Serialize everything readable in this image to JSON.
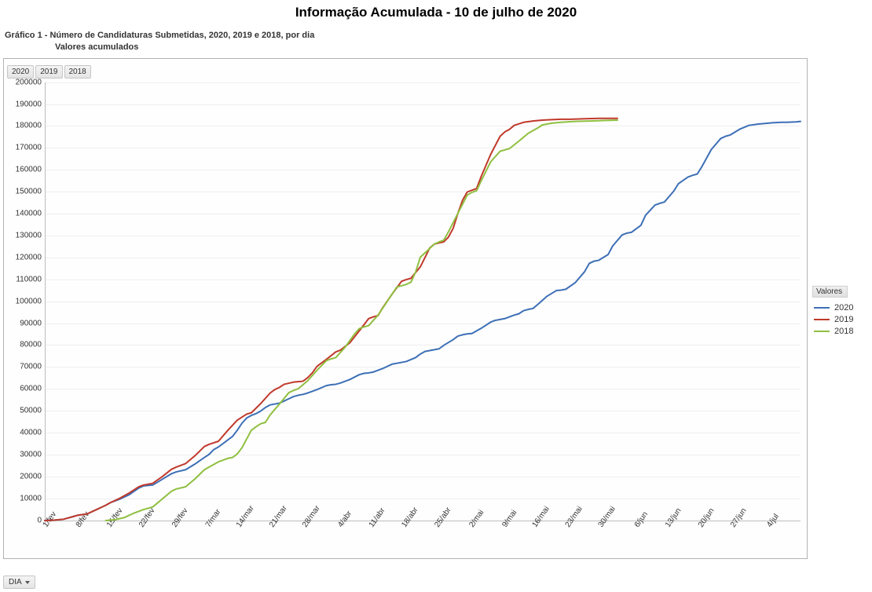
{
  "title": "Informação Acumulada - 10 de julho de 2020",
  "subtitle": {
    "line1": "Gráfico 1 - Número de Candidaturas Submetidas, 2020, 2019 e 2018, por dia",
    "line2": "Valores acumulados"
  },
  "year_chips": [
    "2020",
    "2019",
    "2018"
  ],
  "dia_button_label": "DIA",
  "legend": {
    "title": "Valores",
    "items": [
      {
        "label": "2020",
        "color": "#3d6fb6"
      },
      {
        "label": "2019",
        "color": "#c0392b"
      },
      {
        "label": "2018",
        "color": "#8fbf3f"
      }
    ]
  },
  "chart": {
    "type": "line",
    "background_color": "#fefefe",
    "border_color": "#b3b3b3",
    "grid_color": "#eeeeee",
    "axis_color": "#bdbdbd",
    "label_font_size": 10,
    "line_width": 2,
    "y_axis": {
      "min": 0,
      "max": 200000,
      "tick_step": 10000
    },
    "x_axis": {
      "start_day": 0,
      "end_day": 161,
      "tick_step_days": 7,
      "tick_labels": [
        "1/fev",
        "8/fev",
        "15/fev",
        "22/fev",
        "29/fev",
        "7/mar",
        "14/mar",
        "21/mar",
        "28/mar",
        "4/abr",
        "11/abr",
        "18/abr",
        "25/abr",
        "2/mai",
        "9/mai",
        "16/mai",
        "23/mai",
        "30/mai",
        "6/jun",
        "13/jun",
        "20/jun",
        "27/jun",
        "4/jul"
      ]
    },
    "series": [
      {
        "name": "2020",
        "color": "#3d6fb6",
        "data": [
          [
            0,
            0
          ],
          [
            2,
            200
          ],
          [
            4,
            600
          ],
          [
            6,
            1800
          ],
          [
            7,
            2400
          ],
          [
            9,
            3000
          ],
          [
            11,
            5000
          ],
          [
            13,
            7000
          ],
          [
            14,
            8200
          ],
          [
            16,
            9800
          ],
          [
            18,
            11800
          ],
          [
            20,
            14800
          ],
          [
            21,
            15800
          ],
          [
            23,
            16200
          ],
          [
            25,
            18800
          ],
          [
            27,
            21400
          ],
          [
            28,
            22200
          ],
          [
            30,
            23200
          ],
          [
            32,
            25800
          ],
          [
            34,
            28800
          ],
          [
            35,
            30200
          ],
          [
            36,
            32400
          ],
          [
            37,
            33600
          ],
          [
            38,
            35200
          ],
          [
            39,
            36800
          ],
          [
            40,
            38400
          ],
          [
            41,
            41200
          ],
          [
            42,
            44400
          ],
          [
            43,
            46800
          ],
          [
            44,
            48000
          ],
          [
            45,
            48800
          ],
          [
            46,
            50000
          ],
          [
            47,
            51600
          ],
          [
            48,
            52800
          ],
          [
            49,
            53200
          ],
          [
            50,
            53600
          ],
          [
            51,
            54600
          ],
          [
            52,
            55600
          ],
          [
            53,
            56600
          ],
          [
            54,
            57200
          ],
          [
            55,
            57600
          ],
          [
            56,
            58200
          ],
          [
            58,
            59800
          ],
          [
            60,
            61600
          ],
          [
            61,
            62000
          ],
          [
            62,
            62200
          ],
          [
            63,
            62800
          ],
          [
            65,
            64400
          ],
          [
            67,
            66600
          ],
          [
            68,
            67200
          ],
          [
            69,
            67400
          ],
          [
            70,
            67800
          ],
          [
            72,
            69400
          ],
          [
            74,
            71400
          ],
          [
            75,
            71800
          ],
          [
            76,
            72200
          ],
          [
            77,
            72600
          ],
          [
            79,
            74400
          ],
          [
            80,
            76000
          ],
          [
            81,
            77200
          ],
          [
            82,
            77600
          ],
          [
            83,
            78000
          ],
          [
            84,
            78400
          ],
          [
            85,
            80000
          ],
          [
            87,
            82600
          ],
          [
            88,
            84200
          ],
          [
            89,
            84800
          ],
          [
            90,
            85200
          ],
          [
            91,
            85400
          ],
          [
            93,
            87800
          ],
          [
            95,
            90600
          ],
          [
            96,
            91400
          ],
          [
            97,
            91800
          ],
          [
            98,
            92200
          ],
          [
            100,
            93800
          ],
          [
            101,
            94400
          ],
          [
            102,
            95800
          ],
          [
            103,
            96400
          ],
          [
            104,
            96800
          ],
          [
            105,
            98600
          ],
          [
            107,
            102400
          ],
          [
            109,
            105000
          ],
          [
            110,
            105200
          ],
          [
            111,
            105600
          ],
          [
            113,
            108600
          ],
          [
            115,
            113600
          ],
          [
            116,
            117400
          ],
          [
            117,
            118400
          ],
          [
            118,
            118800
          ],
          [
            120,
            121400
          ],
          [
            121,
            125400
          ],
          [
            123,
            130400
          ],
          [
            124,
            131200
          ],
          [
            125,
            131600
          ],
          [
            127,
            134800
          ],
          [
            128,
            139400
          ],
          [
            130,
            144000
          ],
          [
            131,
            144800
          ],
          [
            132,
            145400
          ],
          [
            134,
            150400
          ],
          [
            135,
            153800
          ],
          [
            137,
            156800
          ],
          [
            138,
            157600
          ],
          [
            139,
            158200
          ],
          [
            140,
            161600
          ],
          [
            142,
            169400
          ],
          [
            144,
            174400
          ],
          [
            145,
            175400
          ],
          [
            146,
            176000
          ],
          [
            148,
            178600
          ],
          [
            150,
            180400
          ],
          [
            152,
            181000
          ],
          [
            153,
            181200
          ],
          [
            155,
            181600
          ],
          [
            157,
            181800
          ],
          [
            158,
            181800
          ],
          [
            160,
            182000
          ],
          [
            161,
            182200
          ]
        ]
      },
      {
        "name": "2019",
        "color": "#c0392b",
        "data": [
          [
            0,
            0
          ],
          [
            2,
            200
          ],
          [
            4,
            600
          ],
          [
            6,
            1800
          ],
          [
            7,
            2400
          ],
          [
            9,
            3000
          ],
          [
            11,
            5000
          ],
          [
            13,
            7000
          ],
          [
            14,
            8200
          ],
          [
            16,
            10200
          ],
          [
            18,
            12600
          ],
          [
            20,
            15400
          ],
          [
            21,
            16200
          ],
          [
            23,
            17000
          ],
          [
            25,
            20000
          ],
          [
            27,
            23400
          ],
          [
            28,
            24400
          ],
          [
            30,
            26000
          ],
          [
            32,
            29600
          ],
          [
            34,
            33800
          ],
          [
            35,
            34800
          ],
          [
            37,
            36200
          ],
          [
            39,
            41200
          ],
          [
            41,
            45800
          ],
          [
            42,
            47200
          ],
          [
            43,
            48600
          ],
          [
            44,
            49200
          ],
          [
            46,
            53400
          ],
          [
            48,
            58200
          ],
          [
            49,
            59800
          ],
          [
            50,
            60800
          ],
          [
            51,
            62200
          ],
          [
            53,
            63200
          ],
          [
            54,
            63400
          ],
          [
            55,
            63600
          ],
          [
            56,
            65200
          ],
          [
            57,
            67400
          ],
          [
            58,
            70400
          ],
          [
            60,
            73600
          ],
          [
            62,
            77000
          ],
          [
            63,
            77800
          ],
          [
            65,
            81200
          ],
          [
            67,
            86600
          ],
          [
            69,
            92200
          ],
          [
            70,
            93000
          ],
          [
            71,
            93600
          ],
          [
            72,
            97200
          ],
          [
            74,
            103400
          ],
          [
            76,
            109200
          ],
          [
            77,
            110000
          ],
          [
            78,
            110600
          ],
          [
            80,
            115800
          ],
          [
            82,
            124400
          ],
          [
            83,
            126200
          ],
          [
            84,
            126800
          ],
          [
            85,
            127200
          ],
          [
            86,
            129400
          ],
          [
            87,
            133400
          ],
          [
            88,
            140200
          ],
          [
            89,
            146200
          ],
          [
            90,
            150000
          ],
          [
            91,
            150800
          ],
          [
            92,
            151600
          ],
          [
            93,
            157200
          ],
          [
            95,
            167200
          ],
          [
            97,
            175400
          ],
          [
            98,
            177400
          ],
          [
            99,
            178600
          ],
          [
            100,
            180400
          ],
          [
            102,
            181800
          ],
          [
            104,
            182400
          ],
          [
            106,
            182800
          ],
          [
            108,
            183000
          ],
          [
            110,
            183200
          ],
          [
            112,
            183200
          ],
          [
            115,
            183400
          ],
          [
            118,
            183600
          ],
          [
            122,
            183600
          ]
        ]
      },
      {
        "name": "2018",
        "color": "#8fbf3f",
        "data": [
          [
            13,
            0
          ],
          [
            15,
            400
          ],
          [
            17,
            1400
          ],
          [
            19,
            3400
          ],
          [
            21,
            5000
          ],
          [
            23,
            6200
          ],
          [
            25,
            9800
          ],
          [
            27,
            13400
          ],
          [
            28,
            14400
          ],
          [
            30,
            15400
          ],
          [
            32,
            19000
          ],
          [
            34,
            23200
          ],
          [
            35,
            24400
          ],
          [
            37,
            26800
          ],
          [
            39,
            28400
          ],
          [
            40,
            28800
          ],
          [
            41,
            30400
          ],
          [
            42,
            33200
          ],
          [
            43,
            37200
          ],
          [
            44,
            41200
          ],
          [
            45,
            42800
          ],
          [
            46,
            44200
          ],
          [
            47,
            44800
          ],
          [
            48,
            48200
          ],
          [
            50,
            53200
          ],
          [
            52,
            58400
          ],
          [
            53,
            59400
          ],
          [
            54,
            60200
          ],
          [
            56,
            63800
          ],
          [
            58,
            68600
          ],
          [
            60,
            73000
          ],
          [
            61,
            73800
          ],
          [
            62,
            74400
          ],
          [
            64,
            79200
          ],
          [
            66,
            85200
          ],
          [
            67,
            87600
          ],
          [
            68,
            88400
          ],
          [
            69,
            89000
          ],
          [
            71,
            93800
          ],
          [
            73,
            100200
          ],
          [
            75,
            106600
          ],
          [
            76,
            107200
          ],
          [
            77,
            107800
          ],
          [
            78,
            108800
          ],
          [
            79,
            113400
          ],
          [
            80,
            120200
          ],
          [
            82,
            124200
          ],
          [
            83,
            126200
          ],
          [
            84,
            127200
          ],
          [
            85,
            128000
          ],
          [
            86,
            131800
          ],
          [
            88,
            140200
          ],
          [
            90,
            148600
          ],
          [
            91,
            149800
          ],
          [
            92,
            150600
          ],
          [
            93,
            155200
          ],
          [
            95,
            163800
          ],
          [
            97,
            168600
          ],
          [
            98,
            169200
          ],
          [
            99,
            169800
          ],
          [
            101,
            173200
          ],
          [
            103,
            176800
          ],
          [
            105,
            179200
          ],
          [
            106,
            180600
          ],
          [
            108,
            181400
          ],
          [
            110,
            181800
          ],
          [
            113,
            182200
          ],
          [
            116,
            182400
          ],
          [
            119,
            182600
          ],
          [
            122,
            182800
          ]
        ]
      }
    ]
  }
}
